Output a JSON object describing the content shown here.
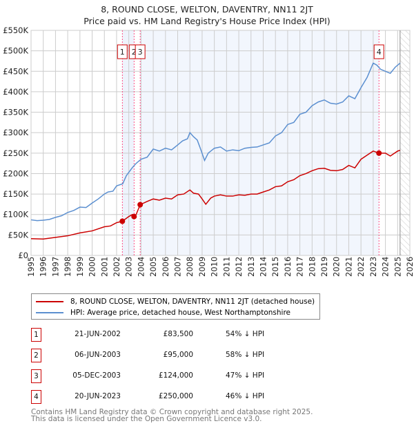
{
  "chart_data": {
    "type": "line",
    "title": "8, ROUND CLOSE, WELTON, DAVENTRY, NN11 2JT",
    "subtitle": "Price paid vs. HM Land Registry's House Price Index (HPI)",
    "xlim": [
      1995,
      2026
    ],
    "ylim": [
      0,
      550000
    ],
    "x_ticks": [
      "1995",
      "1996",
      "1997",
      "1998",
      "1999",
      "2000",
      "2001",
      "2002",
      "2003",
      "2004",
      "2005",
      "2006",
      "2007",
      "2008",
      "2009",
      "2010",
      "2011",
      "2012",
      "2013",
      "2014",
      "2015",
      "2016",
      "2017",
      "2018",
      "2019",
      "2020",
      "2021",
      "2022",
      "2023",
      "2024",
      "2025",
      "2026"
    ],
    "y_ticks": [
      {
        "v": 0,
        "label": "£0"
      },
      {
        "v": 50000,
        "label": "£50K"
      },
      {
        "v": 100000,
        "label": "£100K"
      },
      {
        "v": 150000,
        "label": "£150K"
      },
      {
        "v": 200000,
        "label": "£200K"
      },
      {
        "v": 250000,
        "label": "£250K"
      },
      {
        "v": 300000,
        "label": "£300K"
      },
      {
        "v": 350000,
        "label": "£350K"
      },
      {
        "v": 400000,
        "label": "£400K"
      },
      {
        "v": 450000,
        "label": "£450K"
      },
      {
        "v": 500000,
        "label": "£500K"
      },
      {
        "v": 550000,
        "label": "£550K"
      }
    ],
    "grid": true,
    "forecast_start": 2025.2,
    "series": [
      {
        "name": "8, ROUND CLOSE, WELTON, DAVENTRY, NN11 2JT (detached house)",
        "color": "#cc0000",
        "points": [
          [
            1995,
            41
          ],
          [
            1996,
            40
          ],
          [
            1997,
            44
          ],
          [
            1998,
            48
          ],
          [
            1999,
            55
          ],
          [
            2000,
            60
          ],
          [
            2001,
            70
          ],
          [
            2001.5,
            72
          ],
          [
            2002,
            80
          ],
          [
            2002.47,
            83.5
          ],
          [
            2003,
            95
          ],
          [
            2003.3,
            100
          ],
          [
            2003.43,
            95
          ],
          [
            2003.6,
            100
          ],
          [
            2003.93,
            124
          ],
          [
            2004.5,
            132
          ],
          [
            2005,
            138
          ],
          [
            2005.5,
            135
          ],
          [
            2006,
            140
          ],
          [
            2006.5,
            138
          ],
          [
            2007,
            148
          ],
          [
            2007.5,
            150
          ],
          [
            2008,
            160
          ],
          [
            2008.3,
            152
          ],
          [
            2008.7,
            150
          ],
          [
            2009,
            138
          ],
          [
            2009.3,
            125
          ],
          [
            2009.7,
            140
          ],
          [
            2010,
            145
          ],
          [
            2010.5,
            148
          ],
          [
            2011,
            145
          ],
          [
            2011.5,
            145
          ],
          [
            2012,
            148
          ],
          [
            2012.5,
            147
          ],
          [
            2013,
            150
          ],
          [
            2013.5,
            150
          ],
          [
            2014,
            155
          ],
          [
            2014.5,
            160
          ],
          [
            2015,
            168
          ],
          [
            2015.5,
            170
          ],
          [
            2016,
            180
          ],
          [
            2016.5,
            185
          ],
          [
            2017,
            195
          ],
          [
            2017.5,
            200
          ],
          [
            2018,
            207
          ],
          [
            2018.5,
            212
          ],
          [
            2019,
            213
          ],
          [
            2019.5,
            208
          ],
          [
            2020,
            207
          ],
          [
            2020.5,
            210
          ],
          [
            2021,
            220
          ],
          [
            2021.5,
            214
          ],
          [
            2022,
            235
          ],
          [
            2022.5,
            245
          ],
          [
            2023,
            255
          ],
          [
            2023.47,
            250
          ],
          [
            2024,
            250
          ],
          [
            2024.4,
            243
          ],
          [
            2025,
            255
          ],
          [
            2025.2,
            257
          ]
        ]
      },
      {
        "name": "HPI: Average price, detached house, West Northamptonshire",
        "color": "#5b8fd0",
        "points": [
          [
            1995,
            87
          ],
          [
            1995.5,
            85
          ],
          [
            1996,
            86
          ],
          [
            1996.5,
            88
          ],
          [
            1997,
            93
          ],
          [
            1997.5,
            97
          ],
          [
            1998,
            105
          ],
          [
            1998.5,
            110
          ],
          [
            1999,
            118
          ],
          [
            1999.5,
            117
          ],
          [
            2000,
            128
          ],
          [
            2000.5,
            138
          ],
          [
            2001,
            150
          ],
          [
            2001.3,
            155
          ],
          [
            2001.7,
            157
          ],
          [
            2002,
            170
          ],
          [
            2002.5,
            175
          ],
          [
            2002.8,
            195
          ],
          [
            2003.3,
            215
          ],
          [
            2003.6,
            225
          ],
          [
            2004,
            235
          ],
          [
            2004.5,
            240
          ],
          [
            2005,
            260
          ],
          [
            2005.5,
            255
          ],
          [
            2006,
            262
          ],
          [
            2006.5,
            258
          ],
          [
            2007,
            270
          ],
          [
            2007.4,
            280
          ],
          [
            2007.8,
            285
          ],
          [
            2008,
            300
          ],
          [
            2008.3,
            290
          ],
          [
            2008.6,
            282
          ],
          [
            2008.9,
            258
          ],
          [
            2009.2,
            232
          ],
          [
            2009.5,
            250
          ],
          [
            2010,
            262
          ],
          [
            2010.5,
            265
          ],
          [
            2011,
            255
          ],
          [
            2011.5,
            258
          ],
          [
            2012,
            256
          ],
          [
            2012.5,
            262
          ],
          [
            2013,
            264
          ],
          [
            2013.5,
            265
          ],
          [
            2014,
            270
          ],
          [
            2014.5,
            275
          ],
          [
            2015,
            292
          ],
          [
            2015.5,
            300
          ],
          [
            2016,
            320
          ],
          [
            2016.5,
            325
          ],
          [
            2017,
            345
          ],
          [
            2017.5,
            350
          ],
          [
            2018,
            366
          ],
          [
            2018.5,
            375
          ],
          [
            2019,
            380
          ],
          [
            2019.3,
            375
          ],
          [
            2019.5,
            372
          ],
          [
            2020,
            370
          ],
          [
            2020.5,
            375
          ],
          [
            2021,
            390
          ],
          [
            2021.5,
            383
          ],
          [
            2022,
            410
          ],
          [
            2022.5,
            435
          ],
          [
            2023,
            470
          ],
          [
            2023.3,
            465
          ],
          [
            2023.6,
            455
          ],
          [
            2024,
            450
          ],
          [
            2024.4,
            445
          ],
          [
            2024.8,
            460
          ],
          [
            2025.2,
            470
          ]
        ]
      }
    ],
    "sales": [
      {
        "id": "1",
        "x": 2002.47,
        "value": 83500,
        "date": "21-JUN-2002",
        "price": "£83,500",
        "hpi": "54% ↓ HPI"
      },
      {
        "id": "2",
        "x": 2003.43,
        "value": 95000,
        "date": "06-JUN-2003",
        "price": "£95,000",
        "hpi": "58% ↓ HPI"
      },
      {
        "id": "3",
        "x": 2003.93,
        "value": 124000,
        "date": "05-DEC-2003",
        "price": "£124,000",
        "hpi": "47% ↓ HPI"
      },
      {
        "id": "4",
        "x": 2023.47,
        "value": 250000,
        "date": "20-JUN-2023",
        "price": "£250,000",
        "hpi": "46% ↓ HPI"
      }
    ],
    "legend_placement": "below"
  },
  "footer": {
    "line1": "Contains HM Land Registry data © Crown copyright and database right 2025.",
    "line2": "This data is licensed under the Open Government Licence v3.0."
  }
}
